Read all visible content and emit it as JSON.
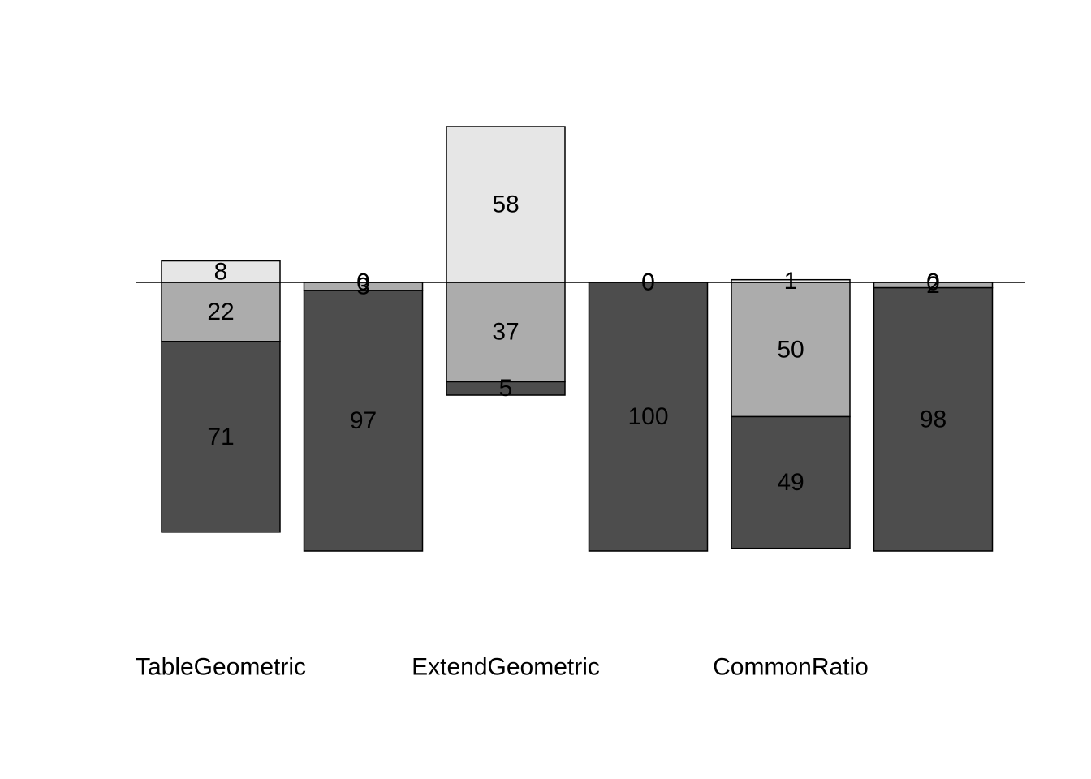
{
  "chart_data": {
    "type": "bar",
    "stacking": "diverging",
    "categories": [
      "TableGeometric",
      "ExtendGeometric",
      "CommonRatio"
    ],
    "bars": [
      {
        "category": "TableGeometric",
        "up": 8,
        "mid": 22,
        "low": 71
      },
      {
        "category": "TableGeometric",
        "up": 0,
        "mid": 3,
        "low": 97
      },
      {
        "category": "ExtendGeometric",
        "up": 58,
        "mid": 37,
        "low": 5
      },
      {
        "category": "ExtendGeometric",
        "up": 0,
        "mid": 0,
        "low": 100
      },
      {
        "category": "CommonRatio",
        "up": 1,
        "mid": 50,
        "low": 49
      },
      {
        "category": "CommonRatio",
        "up": 0,
        "mid": 2,
        "low": 98
      }
    ],
    "colors": {
      "up": "#e6e6e6",
      "mid": "#acacac",
      "low": "#4d4d4d"
    },
    "baseline": 0,
    "grid": false,
    "legend": "none"
  }
}
